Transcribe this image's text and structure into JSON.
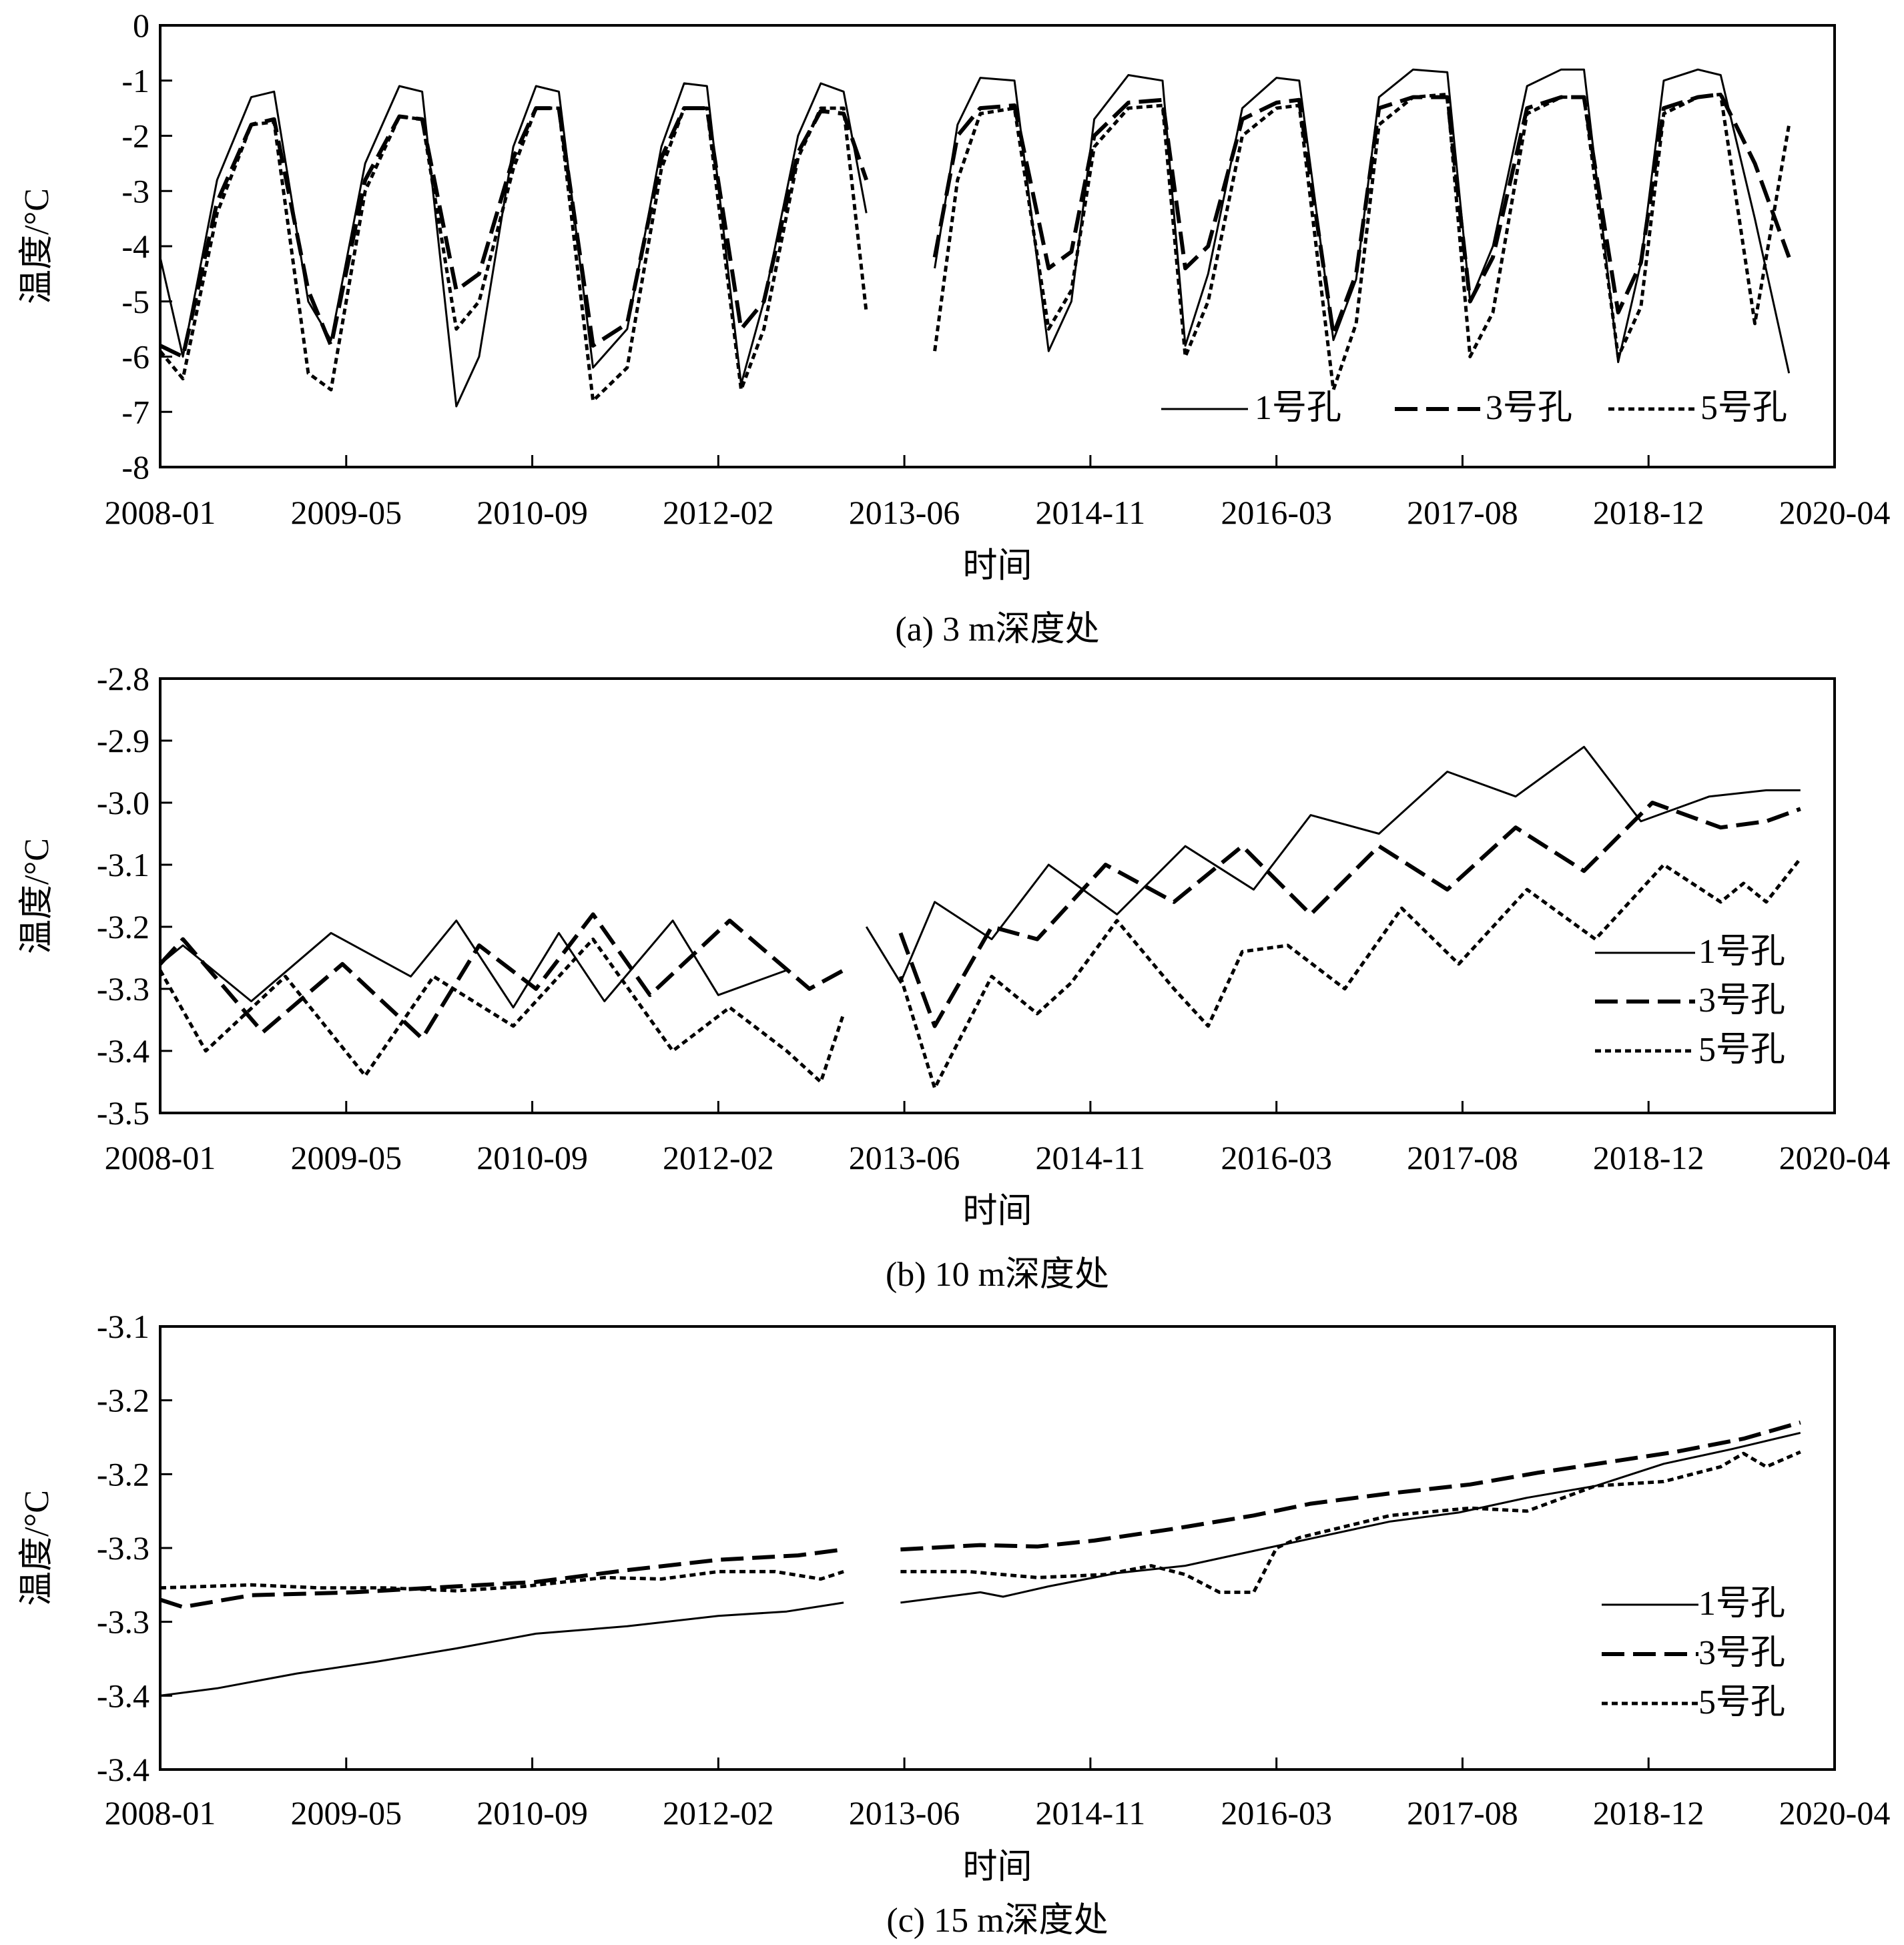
{
  "chart_data": [
    {
      "type": "line",
      "caption": "(a) 3 m深度处",
      "xlabel": "时间",
      "ylabel": "温度/°C",
      "x_ticks": [
        "2008-01",
        "2009-05",
        "2010-09",
        "2012-02",
        "2013-06",
        "2014-11",
        "2016-03",
        "2017-08",
        "2018-12",
        "2020-04"
      ],
      "y_ticks": [
        "0",
        "-1",
        "-2",
        "-3",
        "-4",
        "-5",
        "-6",
        "-7",
        "-8"
      ],
      "ylim": [
        -8,
        0
      ],
      "xlim": [
        "2008-01",
        "2020-04"
      ],
      "grid": false,
      "legend_position": "bottom-right, horizontal",
      "series": [
        {
          "name": "1号孔",
          "style": "solid",
          "x": [
            "2008-01",
            "2008-03",
            "2008-06",
            "2008-09",
            "2008-11",
            "2009-02",
            "2009-04",
            "2009-07",
            "2009-10",
            "2009-12",
            "2010-03",
            "2010-05",
            "2010-08",
            "2010-10",
            "2010-12",
            "2011-03",
            "2011-06",
            "2011-09",
            "2011-11",
            "2012-01",
            "2012-04",
            "2012-06",
            "2012-09",
            "2012-11",
            "2013-01",
            "2013-03",
            "2013-06",
            "2013-09",
            "2013-11",
            "2014-01",
            "2014-04",
            "2014-07",
            "2014-09",
            "2014-11",
            "2015-02",
            "2015-05",
            "2015-07",
            "2015-09",
            "2015-12",
            "2016-03",
            "2016-05",
            "2016-08",
            "2016-10",
            "2016-12",
            "2017-03",
            "2017-06",
            "2017-08",
            "2017-10",
            "2018-01",
            "2018-04",
            "2018-06",
            "2018-09",
            "2018-11",
            "2019-01",
            "2019-04",
            "2019-06",
            "2019-09",
            "2019-12"
          ],
          "y": [
            -4.2,
            -6.0,
            -2.8,
            -1.3,
            -1.2,
            -5.0,
            -5.7,
            -2.5,
            -1.1,
            -1.2,
            -6.9,
            -6.0,
            -2.2,
            -1.1,
            -1.2,
            -6.2,
            -5.5,
            -2.2,
            -1.05,
            -1.1,
            -6.5,
            -5.0,
            -2.0,
            -1.05,
            -1.2,
            -3.4,
            null,
            -4.4,
            -1.8,
            -0.95,
            -1.0,
            -5.9,
            -5.0,
            -1.7,
            -0.9,
            -1.0,
            -5.8,
            -4.5,
            -1.5,
            -0.95,
            -1.0,
            -5.7,
            -4.6,
            -1.3,
            -0.8,
            -0.85,
            -5.0,
            -4.0,
            -1.1,
            -0.8,
            -0.8,
            -6.1,
            -4.3,
            -1.0,
            -0.8,
            -0.9,
            -3.5,
            -6.3
          ]
        },
        {
          "name": "3号孔",
          "style": "dashed",
          "x": [
            "2008-01",
            "2008-03",
            "2008-06",
            "2008-09",
            "2008-11",
            "2009-02",
            "2009-04",
            "2009-07",
            "2009-10",
            "2009-12",
            "2010-03",
            "2010-05",
            "2010-08",
            "2010-10",
            "2010-12",
            "2011-03",
            "2011-06",
            "2011-09",
            "2011-11",
            "2012-01",
            "2012-04",
            "2012-06",
            "2012-09",
            "2012-11",
            "2013-01",
            "2013-03",
            "2013-06",
            "2013-09",
            "2013-11",
            "2014-01",
            "2014-04",
            "2014-07",
            "2014-09",
            "2014-11",
            "2015-02",
            "2015-05",
            "2015-07",
            "2015-09",
            "2015-12",
            "2016-03",
            "2016-05",
            "2016-08",
            "2016-10",
            "2016-12",
            "2017-03",
            "2017-06",
            "2017-08",
            "2017-10",
            "2018-01",
            "2018-04",
            "2018-06",
            "2018-09",
            "2018-11",
            "2019-01",
            "2019-04",
            "2019-06",
            "2019-09",
            "2019-12"
          ],
          "y": [
            -5.8,
            -6.0,
            -3.2,
            -1.8,
            -1.7,
            -4.8,
            -5.8,
            -2.8,
            -1.65,
            -1.7,
            -4.8,
            -4.5,
            -2.4,
            -1.5,
            -1.5,
            -5.8,
            -5.4,
            -2.4,
            -1.5,
            -1.5,
            -5.5,
            -5.0,
            -2.3,
            -1.55,
            -1.6,
            -2.8,
            null,
            -4.2,
            -2.0,
            -1.5,
            -1.45,
            -4.4,
            -4.1,
            -2.0,
            -1.4,
            -1.35,
            -4.4,
            -4.0,
            -1.7,
            -1.4,
            -1.35,
            -5.6,
            -4.5,
            -1.5,
            -1.3,
            -1.3,
            -5.0,
            -4.2,
            -1.5,
            -1.3,
            -1.3,
            -5.2,
            -4.3,
            -1.5,
            -1.3,
            -1.25,
            -2.5,
            -4.2
          ]
        },
        {
          "name": "5号孔",
          "style": "dotted",
          "x": [
            "2008-01",
            "2008-03",
            "2008-06",
            "2008-09",
            "2008-11",
            "2009-02",
            "2009-04",
            "2009-07",
            "2009-10",
            "2009-12",
            "2010-03",
            "2010-05",
            "2010-08",
            "2010-10",
            "2010-12",
            "2011-03",
            "2011-06",
            "2011-09",
            "2011-11",
            "2012-01",
            "2012-04",
            "2012-06",
            "2012-09",
            "2012-11",
            "2013-01",
            "2013-03",
            "2013-06",
            "2013-09",
            "2013-11",
            "2014-01",
            "2014-04",
            "2014-07",
            "2014-09",
            "2014-11",
            "2015-02",
            "2015-05",
            "2015-07",
            "2015-09",
            "2015-12",
            "2016-03",
            "2016-05",
            "2016-08",
            "2016-10",
            "2016-12",
            "2017-03",
            "2017-06",
            "2017-08",
            "2017-10",
            "2018-01",
            "2018-04",
            "2018-06",
            "2018-09",
            "2018-11",
            "2019-01",
            "2019-04",
            "2019-06",
            "2019-09",
            "2019-12"
          ],
          "y": [
            -5.9,
            -6.4,
            -3.4,
            -1.8,
            -1.75,
            -6.3,
            -6.6,
            -3.0,
            -1.65,
            -1.7,
            -5.5,
            -5.0,
            -2.6,
            -1.5,
            -1.5,
            -6.8,
            -6.2,
            -2.6,
            -1.5,
            -1.5,
            -6.6,
            -5.5,
            -2.4,
            -1.5,
            -1.5,
            -5.2,
            null,
            -5.9,
            -2.8,
            -1.6,
            -1.5,
            -5.5,
            -4.8,
            -2.2,
            -1.5,
            -1.45,
            -6.0,
            -5.0,
            -2.0,
            -1.5,
            -1.45,
            -6.6,
            -5.4,
            -1.8,
            -1.3,
            -1.25,
            -6.0,
            -5.2,
            -1.6,
            -1.3,
            -1.3,
            -6.0,
            -5.1,
            -1.6,
            -1.3,
            -1.25,
            -5.4,
            -1.8
          ]
        }
      ]
    },
    {
      "type": "line",
      "caption": "(b) 10 m深度处",
      "xlabel": "时间",
      "ylabel": "温度/°C",
      "x_ticks": [
        "2008-01",
        "2009-05",
        "2010-09",
        "2012-02",
        "2013-06",
        "2014-11",
        "2016-03",
        "2017-08",
        "2018-12",
        "2020-04"
      ],
      "y_ticks": [
        "-2.8",
        "-2.9",
        "-3.0",
        "-3.1",
        "-3.2",
        "-3.3",
        "-3.4",
        "-3.5"
      ],
      "ylim": [
        -3.5,
        -2.8
      ],
      "xlim": [
        "2008-01",
        "2020-04"
      ],
      "grid": false,
      "legend_position": "right, vertical",
      "series": [
        {
          "name": "1号孔",
          "style": "solid",
          "x": [
            "2008-01",
            "2008-03",
            "2008-09",
            "2009-04",
            "2009-11",
            "2010-03",
            "2010-08",
            "2010-12",
            "2011-04",
            "2011-10",
            "2012-02",
            "2012-08",
            "2013-01",
            "2013-03",
            "2013-06",
            "2013-09",
            "2014-02",
            "2014-07",
            "2015-01",
            "2015-07",
            "2016-01",
            "2016-06",
            "2016-12",
            "2017-06",
            "2017-12",
            "2018-06",
            "2018-11",
            "2019-05",
            "2019-10",
            "2020-01"
          ],
          "y": [
            -3.26,
            -3.23,
            -3.32,
            -3.21,
            -3.28,
            -3.19,
            -3.33,
            -3.21,
            -3.32,
            -3.19,
            -3.31,
            -3.27,
            null,
            -3.2,
            -3.29,
            -3.16,
            -3.22,
            -3.1,
            -3.18,
            -3.07,
            -3.14,
            -3.02,
            -3.05,
            -2.95,
            -2.99,
            -2.91,
            -3.03,
            -2.99,
            -2.98,
            -2.98
          ]
        },
        {
          "name": "3号孔",
          "style": "dashed",
          "x": [
            "2008-01",
            "2008-03",
            "2008-10",
            "2009-05",
            "2009-12",
            "2010-05",
            "2010-10",
            "2011-03",
            "2011-08",
            "2012-03",
            "2012-10",
            "2013-01",
            "2013-03",
            "2013-06",
            "2013-09",
            "2014-02",
            "2014-06",
            "2014-12",
            "2015-06",
            "2015-12",
            "2016-06",
            "2016-12",
            "2017-06",
            "2017-12",
            "2018-06",
            "2018-12",
            "2019-06",
            "2019-10",
            "2020-01"
          ],
          "y": [
            -3.26,
            -3.22,
            -3.37,
            -3.26,
            -3.38,
            -3.23,
            -3.3,
            -3.18,
            -3.31,
            -3.19,
            -3.3,
            -3.27,
            null,
            -3.21,
            -3.36,
            -3.2,
            -3.22,
            -3.1,
            -3.16,
            -3.07,
            -3.18,
            -3.07,
            -3.14,
            -3.04,
            -3.11,
            -3.0,
            -3.04,
            -3.03,
            -3.01
          ]
        },
        {
          "name": "5号孔",
          "style": "dotted",
          "x": [
            "2008-01",
            "2008-05",
            "2008-12",
            "2009-07",
            "2010-01",
            "2010-08",
            "2011-03",
            "2011-10",
            "2012-03",
            "2012-08",
            "2012-11",
            "2013-01",
            "2013-03",
            "2013-06",
            "2013-09",
            "2014-02",
            "2014-06",
            "2014-09",
            "2015-01",
            "2015-06",
            "2015-09",
            "2015-12",
            "2016-04",
            "2016-09",
            "2017-02",
            "2017-07",
            "2018-01",
            "2018-07",
            "2019-01",
            "2019-06",
            "2019-08",
            "2019-10",
            "2020-01"
          ],
          "y": [
            -3.27,
            -3.4,
            -3.28,
            -3.44,
            -3.28,
            -3.36,
            -3.22,
            -3.4,
            -3.33,
            -3.4,
            -3.45,
            -3.34,
            null,
            -3.28,
            -3.46,
            -3.28,
            -3.34,
            -3.29,
            -3.19,
            -3.3,
            -3.36,
            -3.24,
            -3.23,
            -3.3,
            -3.17,
            -3.26,
            -3.14,
            -3.22,
            -3.1,
            -3.16,
            -3.13,
            -3.16,
            -3.09
          ]
        }
      ]
    },
    {
      "type": "line",
      "caption": "(c) 15 m深度处",
      "xlabel": "时间",
      "ylabel": "温度/°C",
      "x_ticks": [
        "2008-01",
        "2009-05",
        "2010-09",
        "2012-02",
        "2013-06",
        "2014-11",
        "2016-03",
        "2017-08",
        "2018-12",
        "2020-04"
      ],
      "y_ticks": [
        "-3.1",
        "-3.2",
        "-3.2",
        "-3.3",
        "-3.3",
        "-3.4",
        "-3.4"
      ],
      "ylim": [
        -3.4,
        -3.1
      ],
      "xlim": [
        "2008-01",
        "2020-04"
      ],
      "grid": false,
      "legend_position": "right, vertical",
      "series": [
        {
          "name": "1号孔",
          "style": "solid",
          "x": [
            "2008-01",
            "2008-06",
            "2009-01",
            "2009-08",
            "2010-03",
            "2010-10",
            "2011-06",
            "2012-02",
            "2012-08",
            "2013-01",
            "2013-03",
            "2013-06",
            "2014-01",
            "2014-03",
            "2014-07",
            "2015-01",
            "2015-07",
            "2016-01",
            "2016-07",
            "2017-01",
            "2017-07",
            "2018-01",
            "2018-07",
            "2019-01",
            "2019-07",
            "2020-01"
          ],
          "y": [
            -3.35,
            -3.345,
            -3.335,
            -3.327,
            -3.318,
            -3.308,
            -3.303,
            -3.296,
            -3.293,
            -3.287,
            null,
            -3.287,
            -3.28,
            -3.283,
            -3.276,
            -3.267,
            -3.262,
            -3.252,
            -3.242,
            -3.232,
            -3.226,
            -3.216,
            -3.208,
            -3.193,
            -3.183,
            -3.172
          ]
        },
        {
          "name": "3号孔",
          "style": "dashed",
          "x": [
            "2008-01",
            "2008-03",
            "2008-09",
            "2009-06",
            "2010-03",
            "2010-10",
            "2011-06",
            "2012-02",
            "2012-09",
            "2013-01",
            "2013-03",
            "2013-06",
            "2014-01",
            "2014-06",
            "2014-11",
            "2015-06",
            "2016-01",
            "2016-06",
            "2017-01",
            "2017-08",
            "2018-02",
            "2018-08",
            "2019-02",
            "2019-08",
            "2020-01"
          ],
          "y": [
            -3.285,
            -3.29,
            -3.282,
            -3.28,
            -3.276,
            -3.273,
            -3.265,
            -3.258,
            -3.255,
            -3.251,
            null,
            -3.251,
            -3.248,
            -3.249,
            -3.245,
            -3.237,
            -3.228,
            -3.22,
            -3.213,
            -3.207,
            -3.199,
            -3.192,
            -3.185,
            -3.176,
            -3.165
          ]
        },
        {
          "name": "5号孔",
          "style": "dotted",
          "x": [
            "2008-01",
            "2008-09",
            "2009-03",
            "2009-09",
            "2010-03",
            "2010-09",
            "2011-04",
            "2011-09",
            "2012-02",
            "2012-07",
            "2012-11",
            "2013-01",
            "2013-03",
            "2013-06",
            "2013-12",
            "2014-06",
            "2014-12",
            "2015-04",
            "2015-07",
            "2015-10",
            "2016-01",
            "2016-03",
            "2016-05",
            "2017-01",
            "2017-08",
            "2018-01",
            "2018-07",
            "2019-01",
            "2019-06",
            "2019-08",
            "2019-10",
            "2020-01"
          ],
          "y": [
            -3.277,
            -3.275,
            -3.277,
            -3.277,
            -3.279,
            -3.276,
            -3.27,
            -3.271,
            -3.266,
            -3.266,
            -3.271,
            -3.266,
            null,
            -3.266,
            -3.266,
            -3.27,
            -3.268,
            -3.262,
            -3.268,
            -3.28,
            -3.28,
            -3.25,
            -3.243,
            -3.228,
            -3.223,
            -3.225,
            -3.208,
            -3.205,
            -3.195,
            -3.186,
            -3.195,
            -3.185
          ]
        }
      ]
    }
  ]
}
